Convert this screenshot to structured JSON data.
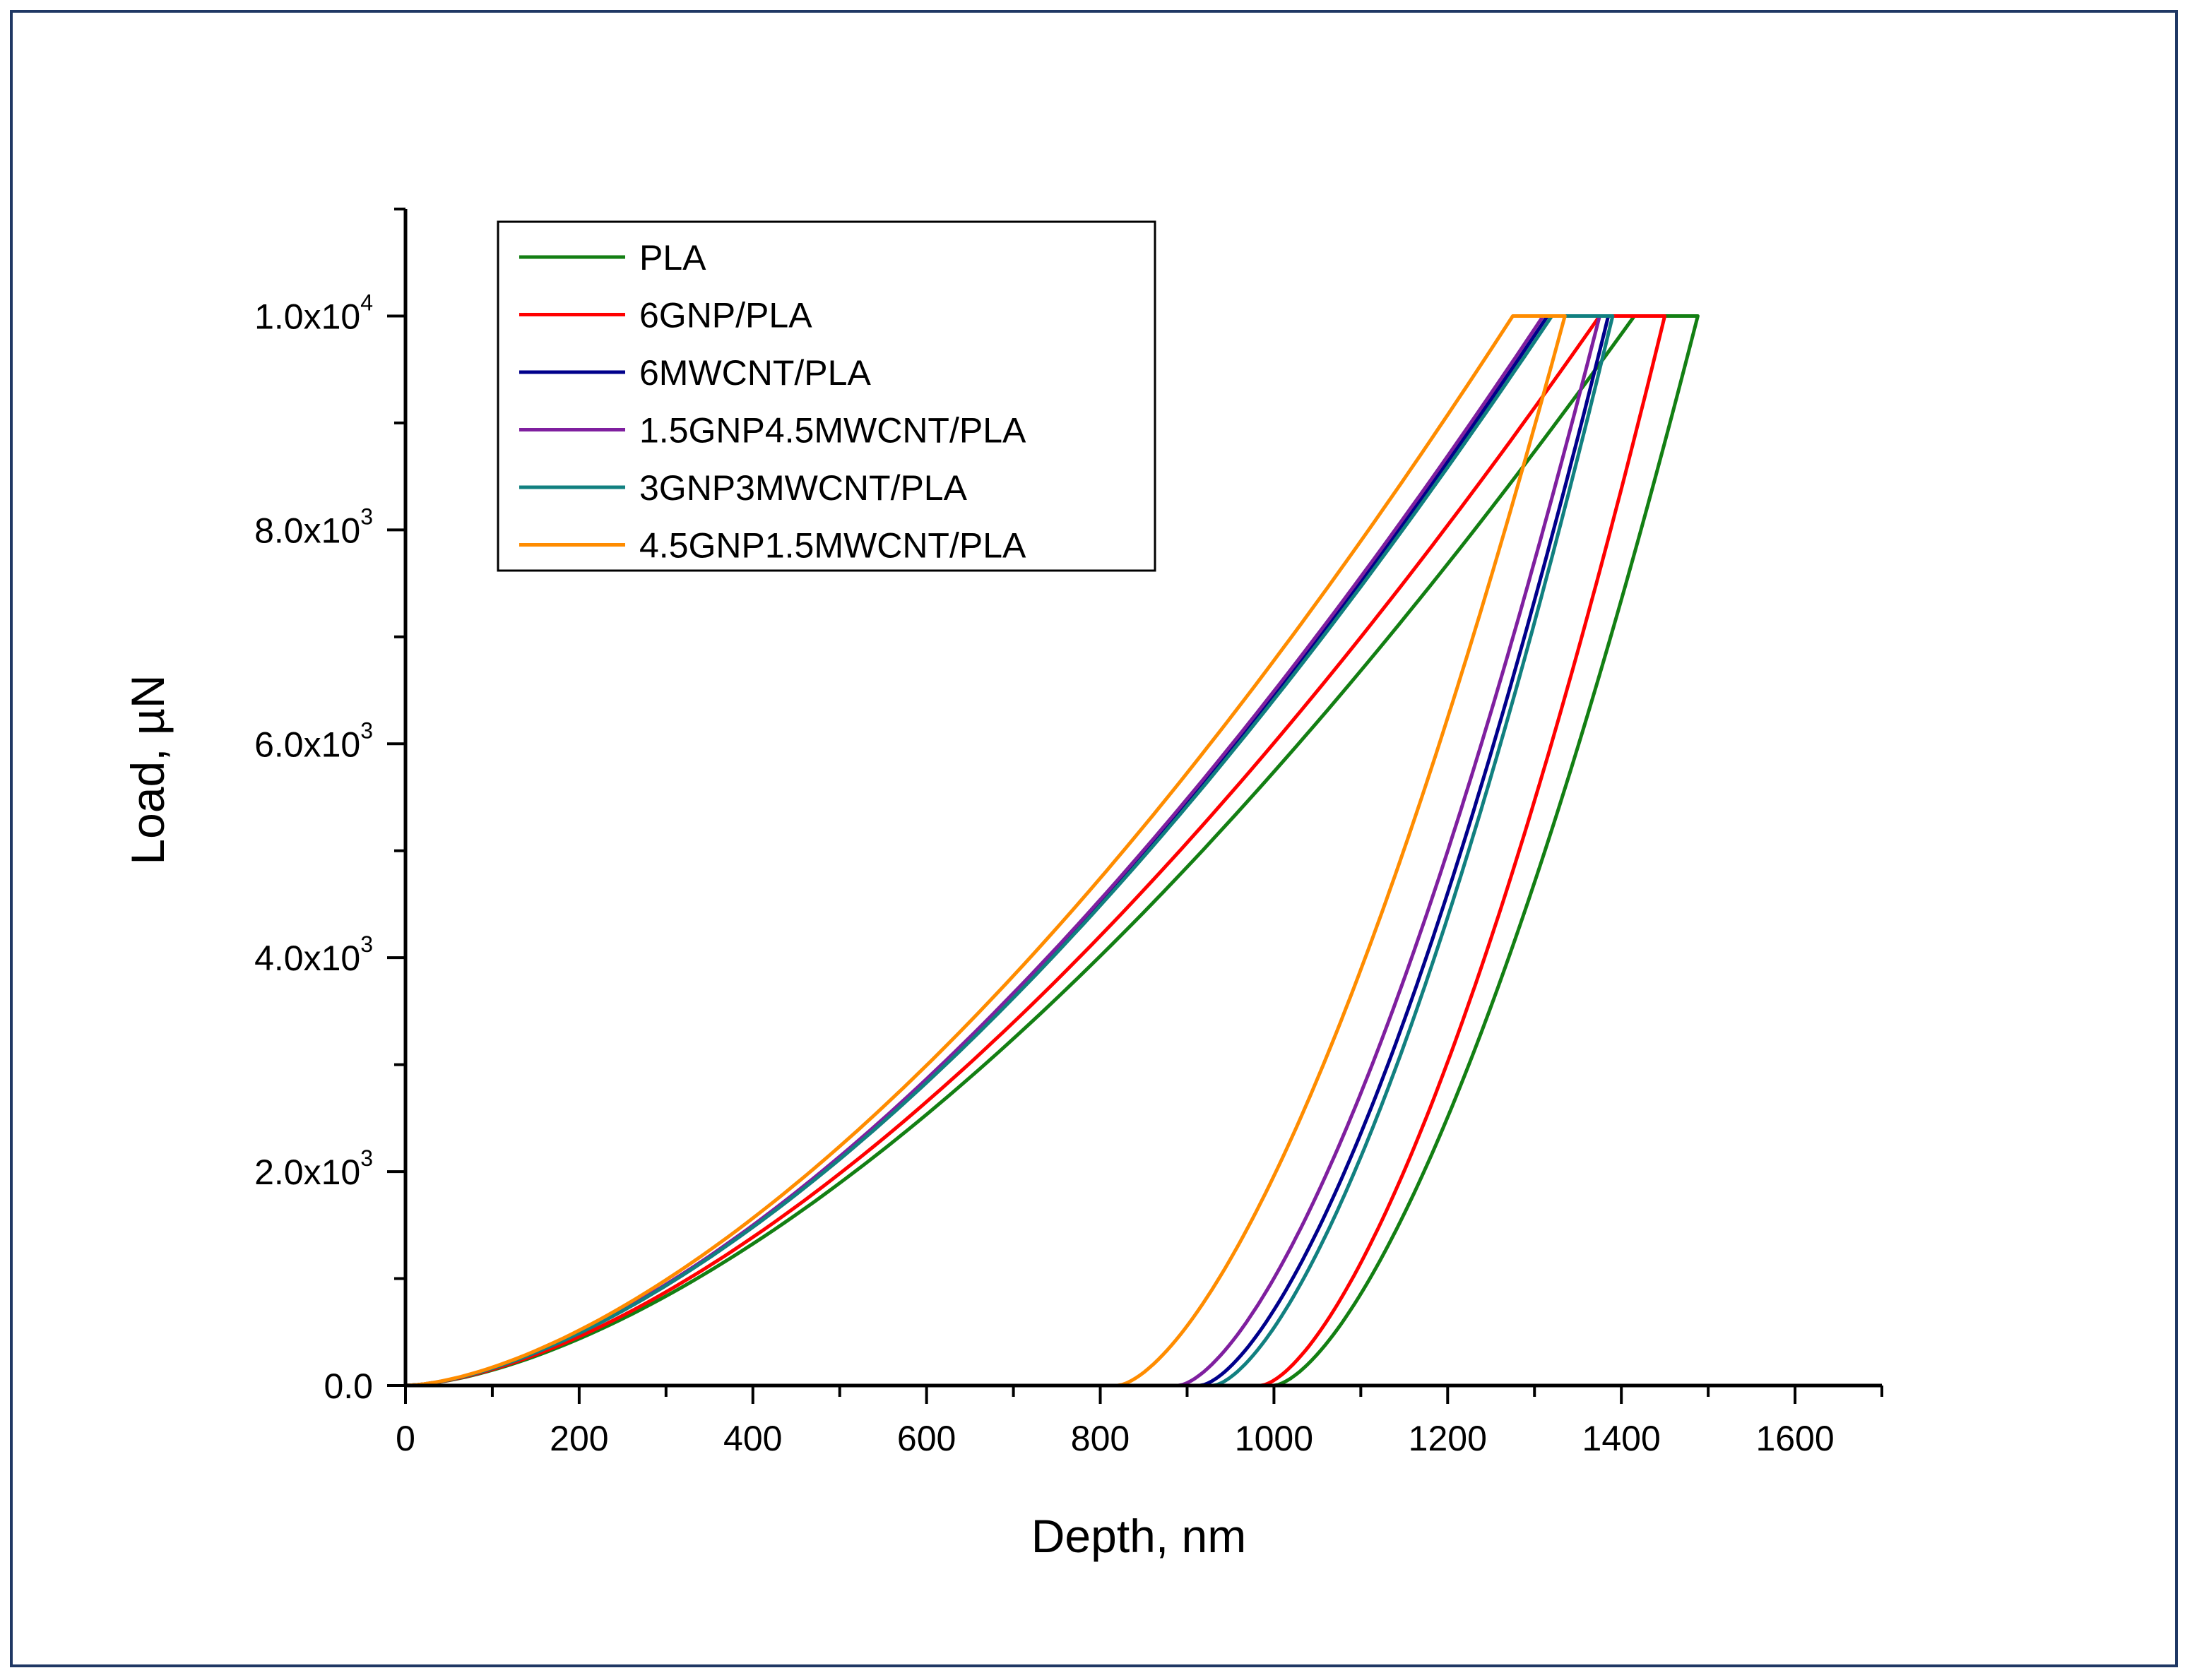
{
  "chart_data": {
    "type": "line",
    "title": "",
    "xlabel": "Depth, nm",
    "ylabel": "Load, µN",
    "xlim": [
      0,
      1700
    ],
    "ylim": [
      0,
      11000
    ],
    "x_ticks": [
      0,
      200,
      400,
      600,
      800,
      1000,
      1200,
      1400,
      1600
    ],
    "y_ticks": [
      {
        "value": 0,
        "base": "0.0",
        "exp": ""
      },
      {
        "value": 2000,
        "base": "2.0x10",
        "exp": "3"
      },
      {
        "value": 4000,
        "base": "4.0x10",
        "exp": "3"
      },
      {
        "value": 6000,
        "base": "6.0x10",
        "exp": "3"
      },
      {
        "value": 8000,
        "base": "8.0x10",
        "exp": "3"
      },
      {
        "value": 10000,
        "base": "1.0x10",
        "exp": "4"
      }
    ],
    "legend_position": "top-left",
    "series": [
      {
        "name": "PLA",
        "color": "#137f13",
        "max_load": 10000,
        "load_max_depth": 1415,
        "hold_max_depth": 1488,
        "residual_depth": 1000,
        "loading_exponent": 1.6
      },
      {
        "name": "6GNP/PLA",
        "color": "#ff0000",
        "max_load": 10000,
        "load_max_depth": 1375,
        "hold_max_depth": 1450,
        "residual_depth": 985,
        "loading_exponent": 1.6
      },
      {
        "name": "6MWCNT/PLA",
        "color": "#00008b",
        "max_load": 10000,
        "load_max_depth": 1315,
        "hold_max_depth": 1385,
        "residual_depth": 915,
        "loading_exponent": 1.6
      },
      {
        "name": "1.5GNP4.5MWCNT/PLA",
        "color": "#7f1f9f",
        "max_load": 10000,
        "load_max_depth": 1310,
        "hold_max_depth": 1375,
        "residual_depth": 890,
        "loading_exponent": 1.6
      },
      {
        "name": "3GNP3MWCNT/PLA",
        "color": "#118080",
        "max_load": 10000,
        "load_max_depth": 1320,
        "hold_max_depth": 1390,
        "residual_depth": 930,
        "loading_exponent": 1.6
      },
      {
        "name": "4.5GNP1.5MWCNT/PLA",
        "color": "#ff8c00",
        "max_load": 10000,
        "load_max_depth": 1275,
        "hold_max_depth": 1335,
        "residual_depth": 820,
        "loading_exponent": 1.6
      }
    ]
  }
}
